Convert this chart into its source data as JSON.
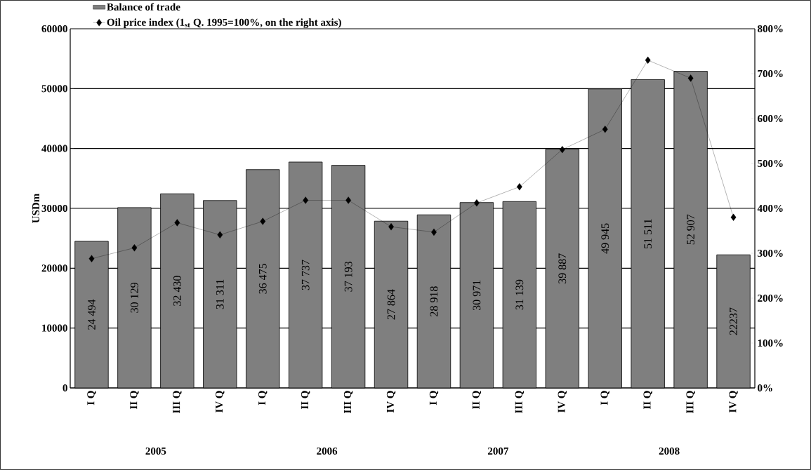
{
  "chart_data": {
    "type": "bar",
    "ylabel": "USDm",
    "categories": [
      "I Q",
      "II Q",
      "III Q",
      "IV Q",
      "I Q",
      "II Q",
      "III Q",
      "IV Q",
      "I Q",
      "II Q",
      "III Q",
      "IV Q",
      "I Q",
      "II Q",
      "III Q",
      "IV Q"
    ],
    "series": [
      {
        "name": "Balance of trade",
        "color": "#7f7f7f",
        "values": [
          24494,
          30129,
          32430,
          31311,
          36475,
          37737,
          37193,
          27864,
          28918,
          30971,
          31139,
          39887,
          49945,
          51511,
          52907,
          22237
        ],
        "value_labels": [
          "24 494",
          "30 129",
          "32 430",
          "31 311",
          "36 475",
          "37 737",
          "37 193",
          "27 864",
          "28 918",
          "30 971",
          "31 139",
          "39 887",
          "49 945",
          "51 511",
          "52 907",
          "22237"
        ]
      },
      {
        "name": "Oil price index (1$_{st}$ Q. 1995=100%, on the right axis)",
        "type": "line",
        "axis": "y2",
        "marker": "diamond",
        "color": "#000000",
        "values": [
          288,
          312,
          368,
          341,
          371,
          418,
          418,
          359,
          347,
          412,
          448,
          531,
          576,
          730,
          690,
          380
        ]
      }
    ],
    "ylim": [
      0,
      60000
    ],
    "yticks": [
      0,
      10000,
      20000,
      30000,
      40000,
      50000,
      60000
    ],
    "y2lim": [
      0,
      800
    ],
    "y2ticks": [
      {
        "value": 0,
        "label": "0%"
      },
      {
        "value": 100,
        "label": "100%"
      },
      {
        "value": 200,
        "label": "200%"
      },
      {
        "value": 300,
        "label": "300%"
      },
      {
        "value": 400,
        "label": "400%"
      },
      {
        "value": 500,
        "label": "500%"
      },
      {
        "value": 600,
        "label": "600%"
      },
      {
        "value": 700,
        "label": "700%"
      },
      {
        "value": 800,
        "label": "800%"
      }
    ],
    "grid": "y",
    "legend": "top left",
    "annotations": [
      "2005",
      "2006",
      "2007",
      "2008"
    ]
  }
}
